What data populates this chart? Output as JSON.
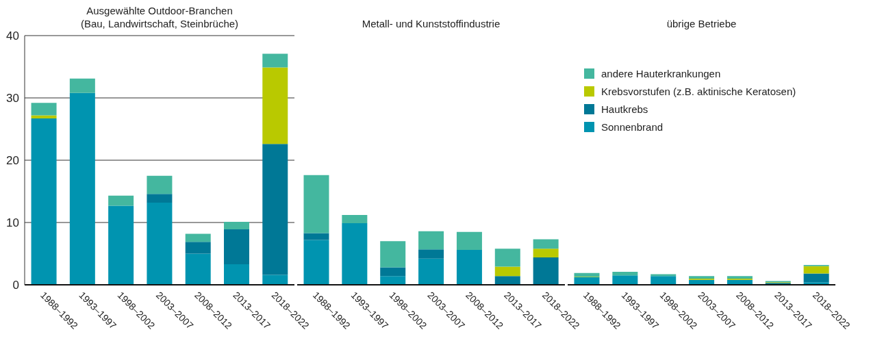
{
  "chart_data": [
    {
      "type": "bar",
      "title": "Ausgewählte Outdoor-Branchen\n(Bau, Landwirtschaft, Steinbrüche)",
      "categories": [
        "1988–1992",
        "1993–1997",
        "1998–2002",
        "2003–2007",
        "2008–2012",
        "2013–2017",
        "2018–2022"
      ],
      "stacked": true,
      "ylim": [
        0,
        40
      ],
      "yticks": [
        0,
        10,
        20,
        30,
        40
      ],
      "grid": "y",
      "series": [
        {
          "color": "#0094b0",
          "values": [
            26.7,
            30.8,
            12.7,
            13.2,
            5.0,
            3.3,
            1.6
          ]
        },
        {
          "color": "#007896",
          "values": [
            0,
            0,
            0,
            1.4,
            1.9,
            5.6,
            21.0
          ]
        },
        {
          "color": "#b9c900",
          "values": [
            0.5,
            0,
            0,
            0,
            0,
            0,
            12.3
          ]
        },
        {
          "color": "#44b79f",
          "values": [
            2.0,
            2.3,
            1.6,
            2.9,
            1.3,
            1.2,
            2.2
          ]
        }
      ]
    },
    {
      "type": "bar",
      "title": "Metall- und Kunststoffindustrie",
      "categories": [
        "1988–1992",
        "1993–1997",
        "1998–2002",
        "2003–2007",
        "2008–2012",
        "2013–2017",
        "2018–2022"
      ],
      "stacked": true,
      "ylim": [
        0,
        40
      ],
      "yticks": [
        0,
        10,
        20,
        30,
        40
      ],
      "grid": "y",
      "tick_labels": "x",
      "series": [
        {
          "color": "#0094b0",
          "values": [
            7.2,
            9.9,
            1.4,
            4.2,
            5.6,
            0,
            0
          ]
        },
        {
          "color": "#007896",
          "values": [
            1.1,
            0,
            1.4,
            1.5,
            0,
            1.4,
            4.4
          ]
        },
        {
          "color": "#b9c900",
          "values": [
            0,
            0,
            0,
            0,
            0,
            1.5,
            1.4
          ]
        },
        {
          "color": "#44b79f",
          "values": [
            9.3,
            1.3,
            4.2,
            2.9,
            2.9,
            2.9,
            1.5
          ]
        }
      ]
    },
    {
      "type": "bar",
      "title": "übrige Betriebe",
      "categories": [
        "1988–1992",
        "1993–1997",
        "1998–2002",
        "2003–2007",
        "2008–2012",
        "2013–2017",
        "2018–2022"
      ],
      "stacked": true,
      "ylim": [
        0,
        40
      ],
      "yticks": [
        0,
        10,
        20,
        30,
        40
      ],
      "grid": "y",
      "legend": "top",
      "tick_labels": "x",
      "series": [
        {
          "name": "Sonnenbrand",
          "color": "#0094b0",
          "values": [
            1.2,
            1.5,
            1.4,
            0.8,
            0.8,
            0.1,
            0.4
          ]
        },
        {
          "name": "Hautkrebs",
          "color": "#007896",
          "values": [
            0,
            0,
            0,
            0,
            0,
            0.2,
            1.4
          ]
        },
        {
          "name": "Krebsvorstufen (z.B. aktinische Keratosen)",
          "color": "#b9c900",
          "values": [
            0.1,
            0,
            0,
            0.2,
            0.2,
            0.1,
            1.2
          ]
        },
        {
          "name": "andere Hauterkrankungen",
          "color": "#44b79f",
          "values": [
            0.6,
            0.6,
            0.3,
            0.4,
            0.4,
            0.2,
            0.2
          ]
        }
      ]
    }
  ]
}
